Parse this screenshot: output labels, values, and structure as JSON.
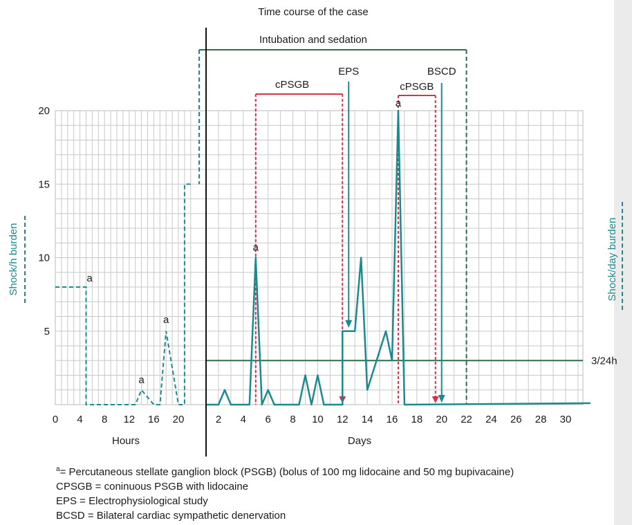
{
  "chart_data": {
    "type": "line",
    "title": "Time course of the case",
    "ylabel_left": "Shock/h burden",
    "ylabel_right": "Shock/day burden",
    "ylim": [
      0,
      20
    ],
    "yticks": [
      5,
      10,
      15,
      20
    ],
    "x_hours": {
      "label": "Hours",
      "range": [
        0,
        22
      ],
      "ticks": [
        0,
        4,
        8,
        12,
        16,
        20
      ]
    },
    "x_days": {
      "label": "Days",
      "range": [
        1,
        32
      ],
      "ticks": [
        2,
        4,
        6,
        8,
        10,
        12,
        14,
        16,
        18,
        20,
        22,
        24,
        26,
        28,
        30
      ]
    },
    "series": [
      {
        "name": "Shock/h burden",
        "style": "dashed",
        "color": "#1a8a8f",
        "axis": "hours",
        "x": [
          0,
          5,
          5,
          12,
          13,
          14,
          16,
          17,
          18,
          20,
          21,
          21,
          22
        ],
        "y": [
          8,
          8,
          0,
          0,
          0,
          1,
          0,
          0,
          5,
          0,
          0,
          15,
          15
        ]
      },
      {
        "name": "Shock/day burden",
        "style": "solid",
        "color": "#1a8a8f",
        "axis": "days",
        "x": [
          1,
          2,
          2.5,
          3,
          4.5,
          5,
          5.5,
          6,
          6.5,
          7,
          8.5,
          9,
          9.5,
          10,
          10.5,
          11,
          12,
          12,
          13,
          13.5,
          14,
          15.5,
          16,
          16.5,
          17,
          32
        ],
        "y": [
          0,
          0,
          1,
          0,
          0,
          10,
          0,
          1,
          0,
          0,
          0,
          2,
          0,
          2,
          0,
          0,
          0,
          5,
          5,
          10,
          1,
          5,
          3,
          20,
          0,
          0.1
        ]
      }
    ],
    "reference_line": {
      "label": "3/24h",
      "y": 3,
      "x_range": [
        1,
        32
      ],
      "color": "#2d6e4a"
    },
    "intervals": [
      {
        "label": "Intubation and sedation",
        "x_range": [
          1,
          22
        ],
        "color": "#2d6e4a"
      },
      {
        "label": "cPSGB",
        "x_range": [
          5,
          12
        ],
        "color": "#d9304a"
      },
      {
        "label": "cPSGB",
        "x_range": [
          16.5,
          19.5
        ],
        "color": "#d9304a"
      }
    ],
    "events": [
      {
        "label": "EPS",
        "x": 12.5
      },
      {
        "label": "BSCD",
        "x": 20
      }
    ],
    "annotations": [
      {
        "text": "a",
        "axis": "hours",
        "x": 5,
        "y": 8
      },
      {
        "text": "a",
        "axis": "hours",
        "x": 14,
        "y": 1
      },
      {
        "text": "a",
        "axis": "hours",
        "x": 18,
        "y": 5
      },
      {
        "text": "a",
        "axis": "days",
        "x": 5,
        "y": 10
      },
      {
        "text": "a",
        "axis": "days",
        "x": 16.5,
        "y": 20
      }
    ]
  },
  "footnotes": {
    "pct_sup": "a",
    "pct_text": "= Percutaneous stellate ganglion block (PSGB) (bolus of 100 mg lidocaine and 50 mg bupivacaine)",
    "cpsgb": "CPSGB = coninuous PSGB with lidocaine",
    "eps": "EPS = Electrophysiological study",
    "bcsd": "BCSD = Bilateral cardiac sympathetic denervation"
  }
}
